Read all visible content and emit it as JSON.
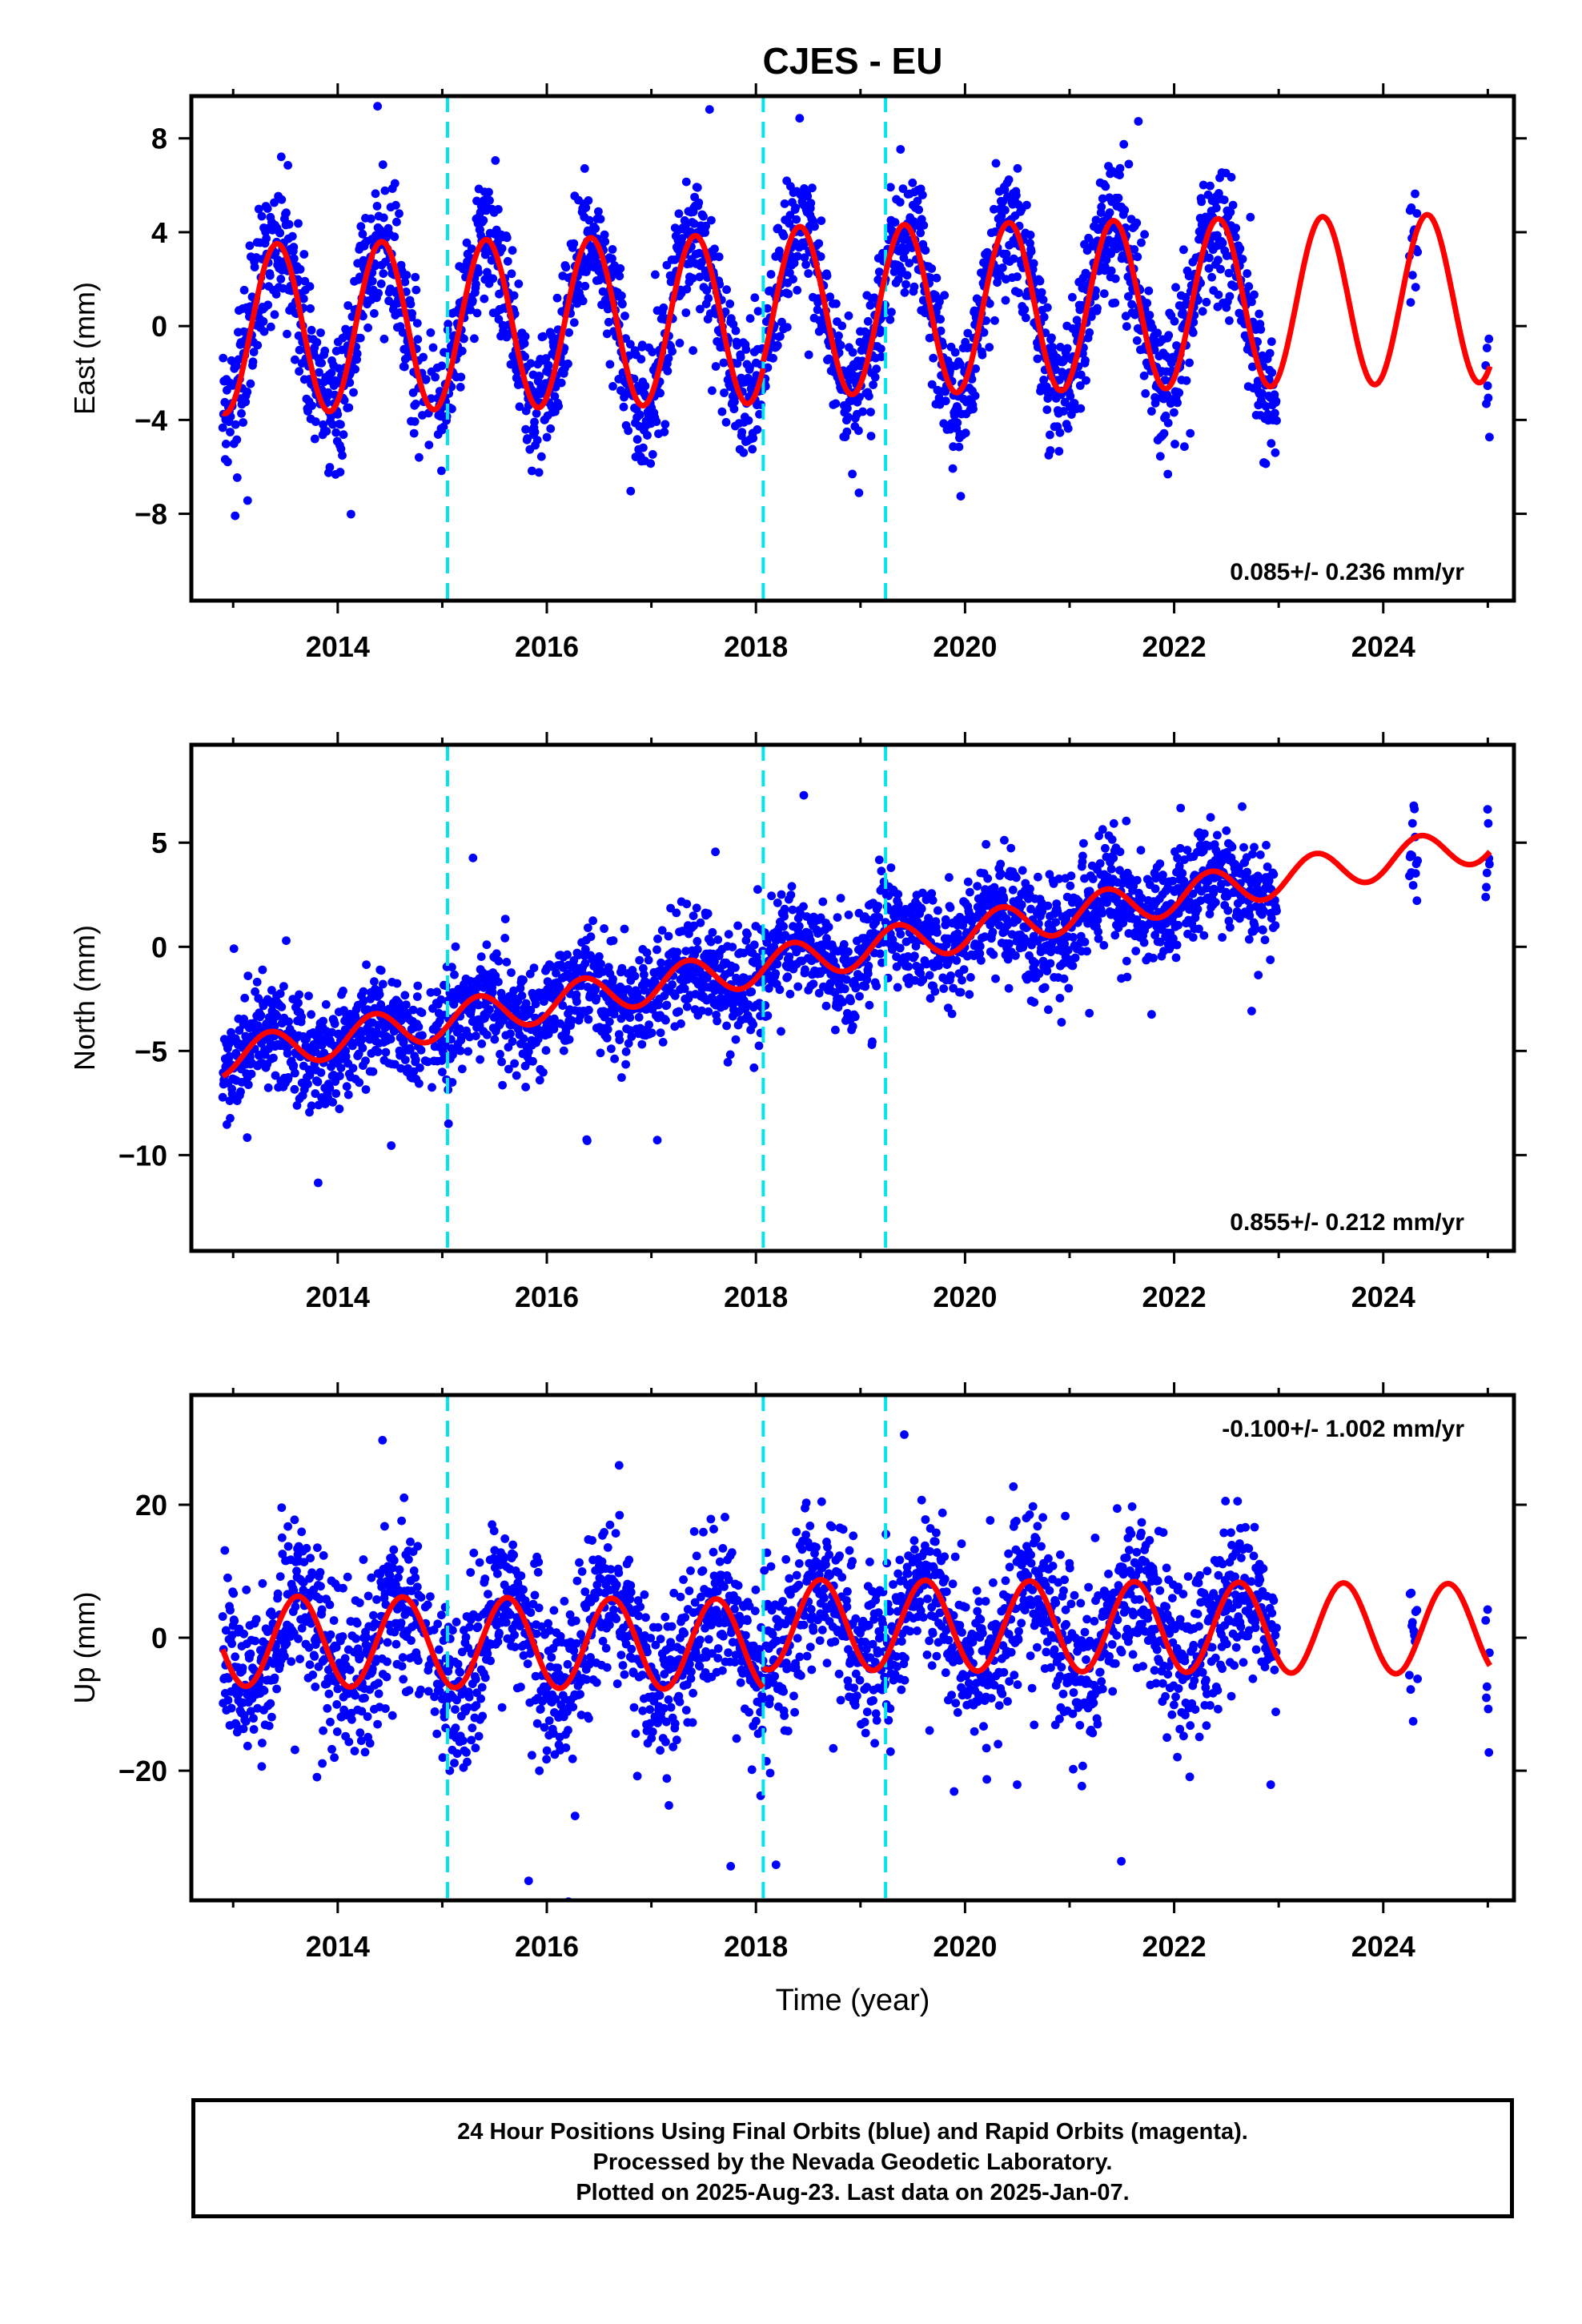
{
  "figure": {
    "title": "CJES - EU",
    "xlabel": "Time (year)",
    "caption": [
      "24 Hour Positions Using Final Orbits (blue) and Rapid Orbits (magenta).",
      "Processed by the Nevada Geodetic Laboratory.",
      "Plotted on 2025-Aug-23. Last data on 2025-Jan-07."
    ],
    "colors": {
      "points": "#0000ff",
      "fit": "#ff0000",
      "offsets": "#00e5ee",
      "frame": "#000000"
    }
  },
  "chart_data": [
    {
      "type": "scatter",
      "name": "east-panel",
      "ylabel": "East (mm)",
      "rate_text": "0.085+/- 0.236 mm/yr",
      "rate_position": "bottom-right",
      "xlim": [
        2012.6,
        2025.25
      ],
      "ylim": [
        -11.7,
        9.8
      ],
      "xticks": [
        2014,
        2016,
        2018,
        2020,
        2022,
        2024
      ],
      "yticks": [
        8,
        4,
        0,
        -4,
        -8
      ],
      "ytick_labels": [
        "8",
        "4",
        "0",
        "−4",
        "−8"
      ],
      "offsets_x": [
        2015.05,
        2018.07,
        2019.24
      ],
      "data_span": [
        2012.9,
        2022.98
      ],
      "extra_clusters": [
        [
          2024.25,
          2024.33
        ],
        [
          2024.98,
          2025.02
        ]
      ],
      "fit": {
        "mean": 0.3,
        "rate": 0.085,
        "amplitude": 3.6,
        "peak_phase": 0.42,
        "anchor_year": 2018.0,
        "segments": [
          {
            "start": 2012.9,
            "end": 2018.07,
            "shift": 0
          },
          {
            "start": 2018.07,
            "end": 2025.02,
            "shift": 0.3
          }
        ]
      },
      "scatter_sd": 1.4
    },
    {
      "type": "scatter",
      "name": "north-panel",
      "ylabel": "North (mm)",
      "rate_text": "0.855+/- 0.212 mm/yr",
      "rate_position": "bottom-right",
      "xlim": [
        2012.6,
        2025.25
      ],
      "ylim": [
        -14.6,
        9.7
      ],
      "xticks": [
        2014,
        2016,
        2018,
        2020,
        2022,
        2024
      ],
      "yticks": [
        5,
        0,
        -5,
        -10
      ],
      "ytick_labels": [
        "5",
        "0",
        "−5",
        "−10"
      ],
      "offsets_x": [
        2015.05,
        2018.07,
        2019.24
      ],
      "data_span": [
        2012.9,
        2022.98
      ],
      "extra_clusters": [
        [
          2024.25,
          2024.33
        ],
        [
          2024.98,
          2025.02
        ]
      ],
      "fit": {
        "mean": -1.0,
        "rate": 0.855,
        "amplitude": 0.9,
        "peak_phase": 0.35,
        "anchor_year": 2018.0,
        "segments": [
          {
            "start": 2012.9,
            "end": 2025.02,
            "shift": 0
          }
        ]
      },
      "scatter_sd": 1.3
    },
    {
      "type": "scatter",
      "name": "up-panel",
      "ylabel": "Up (mm)",
      "rate_text": "-0.100+/- 1.002 mm/yr",
      "rate_position": "top-right",
      "xlim": [
        2012.6,
        2025.25
      ],
      "ylim": [
        -39.5,
        36.5
      ],
      "xticks": [
        2014,
        2016,
        2018,
        2020,
        2022,
        2024
      ],
      "yticks": [
        20,
        0,
        -20
      ],
      "ytick_labels": [
        "20",
        "0",
        "−20"
      ],
      "offsets_x": [
        2015.05,
        2018.07,
        2019.24
      ],
      "data_span": [
        2012.9,
        2022.98
      ],
      "extra_clusters": [
        [
          2024.25,
          2024.33
        ],
        [
          2024.98,
          2025.02
        ]
      ],
      "fit": {
        "mean": -1.0,
        "rate": -0.1,
        "amplitude": 6.8,
        "peak_phase": 0.62,
        "anchor_year": 2018.0,
        "segments": [
          {
            "start": 2012.9,
            "end": 2018.07,
            "shift": 0
          },
          {
            "start": 2018.07,
            "end": 2025.02,
            "shift": 3.0
          }
        ]
      },
      "scatter_sd": 6.0
    }
  ]
}
